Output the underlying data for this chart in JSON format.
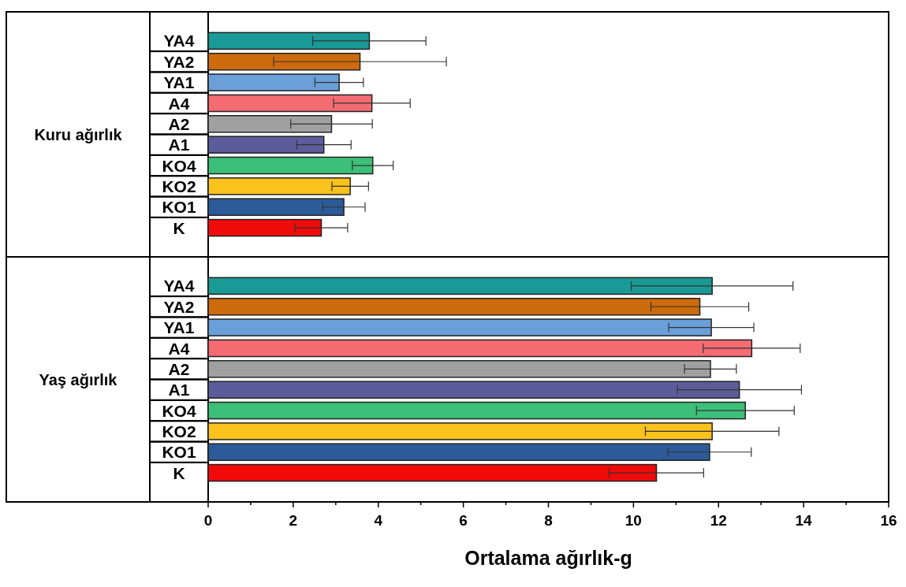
{
  "chart_data": [
    {
      "type": "bar",
      "orientation": "horizontal",
      "ylabel": "Kuru ağırlık",
      "categories": [
        "YA4",
        "YA2",
        "YA1",
        "A4",
        "A2",
        "A1",
        "KO4",
        "KO2",
        "KO1",
        "K"
      ],
      "values": [
        3.79,
        3.57,
        3.08,
        3.85,
        2.9,
        2.72,
        3.87,
        3.34,
        3.19,
        2.66
      ],
      "errors": [
        1.33,
        2.03,
        0.57,
        0.9,
        0.96,
        0.64,
        0.48,
        0.43,
        0.5,
        0.62
      ],
      "colors": [
        "#1a9a96",
        "#cc6a0c",
        "#6a9fd8",
        "#f46c72",
        "#a0a0a0",
        "#5c5c9a",
        "#3cbf78",
        "#f9c21c",
        "#2d5b99",
        "#f00a0a"
      ],
      "xlim": [
        0,
        16
      ],
      "tick_labels": "y"
    },
    {
      "type": "bar",
      "orientation": "horizontal",
      "ylabel": "Yaş ağırlık",
      "xlabel": "Ortalama ağırlık-g",
      "categories": [
        "YA4",
        "YA2",
        "YA1",
        "A4",
        "A2",
        "A1",
        "KO4",
        "KO2",
        "KO1",
        "K"
      ],
      "values": [
        11.85,
        11.56,
        11.83,
        12.78,
        11.81,
        12.49,
        12.63,
        11.85,
        11.79,
        10.54
      ],
      "errors": [
        1.9,
        1.15,
        1.0,
        1.14,
        0.61,
        1.46,
        1.15,
        1.57,
        0.98,
        1.11
      ],
      "colors": [
        "#1a9a96",
        "#cc6a0c",
        "#6a9fd8",
        "#f46c72",
        "#a0a0a0",
        "#5c5c9a",
        "#3cbf78",
        "#f9c21c",
        "#2d5b99",
        "#f00a0a"
      ],
      "xlim": [
        0,
        16
      ],
      "xticks": [
        0,
        {
          "value": 1,
          "label": null
        },
        2,
        {
          "value": 3,
          "label": null
        },
        4,
        {
          "value": 5,
          "label": null
        },
        6,
        {
          "value": 7,
          "label": null
        },
        8,
        {
          "value": 9,
          "label": null
        },
        10,
        {
          "value": 11,
          "label": null
        },
        12,
        {
          "value": 13,
          "label": null
        },
        14,
        {
          "value": 15,
          "label": null
        },
        16
      ]
    }
  ]
}
